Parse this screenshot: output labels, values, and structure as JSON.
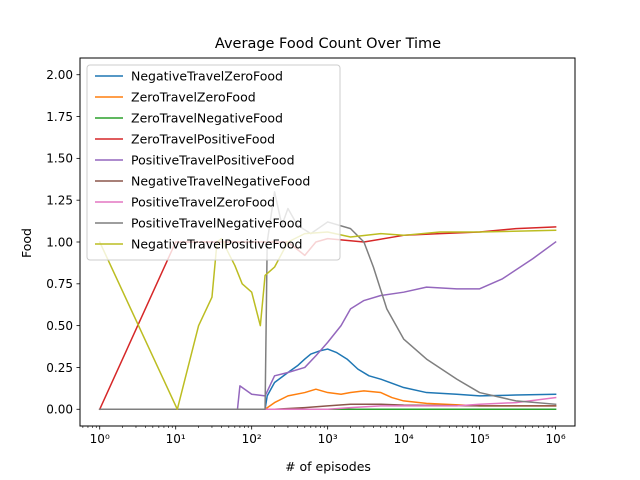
{
  "chart_data": {
    "type": "line",
    "title": "Average Food Count Over Time",
    "xlabel": "# of episodes",
    "ylabel": "Food",
    "xscale": "log",
    "xlim": [
      0.55,
      1800000.0
    ],
    "ylim": [
      -0.1,
      2.1
    ],
    "xticks": [
      {
        "value": 1,
        "label": "10⁰"
      },
      {
        "value": 10,
        "label": "10¹"
      },
      {
        "value": 100,
        "label": "10²"
      },
      {
        "value": 1000,
        "label": "10³"
      },
      {
        "value": 10000,
        "label": "10⁴"
      },
      {
        "value": 100000,
        "label": "10⁵"
      },
      {
        "value": 1000000,
        "label": "10⁶"
      }
    ],
    "yticks": [
      {
        "value": 0.0,
        "label": "0.00"
      },
      {
        "value": 0.25,
        "label": "0.25"
      },
      {
        "value": 0.5,
        "label": "0.50"
      },
      {
        "value": 0.75,
        "label": "0.75"
      },
      {
        "value": 1.0,
        "label": "1.00"
      },
      {
        "value": 1.25,
        "label": "1.25"
      },
      {
        "value": 1.5,
        "label": "1.50"
      },
      {
        "value": 1.75,
        "label": "1.75"
      },
      {
        "value": 2.0,
        "label": "2.00"
      }
    ],
    "grid": false,
    "legend_position": "upper-left",
    "series": [
      {
        "name": "NegativeTravelZeroFood",
        "color": "#1f77b4",
        "points": [
          [
            1,
            0
          ],
          [
            150,
            0
          ],
          [
            160,
            0.08
          ],
          [
            200,
            0.16
          ],
          [
            300,
            0.22
          ],
          [
            400,
            0.26
          ],
          [
            500,
            0.3
          ],
          [
            600,
            0.33
          ],
          [
            800,
            0.35
          ],
          [
            1000,
            0.36
          ],
          [
            1300,
            0.34
          ],
          [
            1800,
            0.3
          ],
          [
            2500,
            0.24
          ],
          [
            3500,
            0.2
          ],
          [
            5000,
            0.18
          ],
          [
            10000,
            0.13
          ],
          [
            20000,
            0.1
          ],
          [
            50000,
            0.09
          ],
          [
            100000,
            0.08
          ],
          [
            300000,
            0.085
          ],
          [
            1000000,
            0.09
          ]
        ]
      },
      {
        "name": "ZeroTravelZeroFood",
        "color": "#ff7f0e",
        "points": [
          [
            1,
            0
          ],
          [
            150,
            0
          ],
          [
            200,
            0.04
          ],
          [
            300,
            0.08
          ],
          [
            500,
            0.1
          ],
          [
            700,
            0.12
          ],
          [
            1000,
            0.1
          ],
          [
            1500,
            0.09
          ],
          [
            2000,
            0.1
          ],
          [
            3000,
            0.11
          ],
          [
            5000,
            0.1
          ],
          [
            7000,
            0.07
          ],
          [
            10000,
            0.05
          ],
          [
            20000,
            0.035
          ],
          [
            100000,
            0.02
          ],
          [
            1000000,
            0.02
          ]
        ]
      },
      {
        "name": "ZeroTravelNegativeFood",
        "color": "#2ca02c",
        "points": [
          [
            1,
            0
          ],
          [
            1000000,
            0
          ]
        ]
      },
      {
        "name": "ZeroTravelPositiveFood",
        "color": "#d62728",
        "points": [
          [
            1,
            0
          ],
          [
            10,
            1.0
          ],
          [
            100,
            1.0
          ],
          [
            300,
            1.0
          ],
          [
            500,
            0.92
          ],
          [
            700,
            1.0
          ],
          [
            1000,
            1.02
          ],
          [
            3000,
            1.0
          ],
          [
            10000,
            1.04
          ],
          [
            30000,
            1.05
          ],
          [
            100000,
            1.06
          ],
          [
            300000,
            1.08
          ],
          [
            1000000,
            1.09
          ]
        ]
      },
      {
        "name": "PositiveTravelPositiveFood",
        "color": "#9467bd",
        "points": [
          [
            1,
            0
          ],
          [
            65,
            0
          ],
          [
            70,
            0.14
          ],
          [
            100,
            0.09
          ],
          [
            150,
            0.08
          ],
          [
            200,
            0.2
          ],
          [
            300,
            0.22
          ],
          [
            500,
            0.25
          ],
          [
            700,
            0.32
          ],
          [
            1000,
            0.4
          ],
          [
            1500,
            0.5
          ],
          [
            2000,
            0.6
          ],
          [
            3000,
            0.65
          ],
          [
            5000,
            0.68
          ],
          [
            10000,
            0.7
          ],
          [
            20000,
            0.73
          ],
          [
            50000,
            0.72
          ],
          [
            100000,
            0.72
          ],
          [
            200000,
            0.78
          ],
          [
            500000,
            0.9
          ],
          [
            1000000,
            1.0
          ]
        ]
      },
      {
        "name": "NegativeTravelNegativeFood",
        "color": "#8c564b",
        "points": [
          [
            1,
            0
          ],
          [
            200,
            0
          ],
          [
            500,
            0.01
          ],
          [
            1000,
            0.02
          ],
          [
            2000,
            0.03
          ],
          [
            5000,
            0.03
          ],
          [
            10000,
            0.025
          ],
          [
            100000,
            0.02
          ],
          [
            1000000,
            0.02
          ]
        ]
      },
      {
        "name": "PositiveTravelZeroFood",
        "color": "#e377c2",
        "points": [
          [
            1,
            0
          ],
          [
            1000,
            0
          ],
          [
            2000,
            0.01
          ],
          [
            5000,
            0.02
          ],
          [
            10000,
            0.02
          ],
          [
            50000,
            0.02
          ],
          [
            100000,
            0.03
          ],
          [
            300000,
            0.04
          ],
          [
            1000000,
            0.07
          ]
        ]
      },
      {
        "name": "PositiveTravelNegativeFood",
        "color": "#7f7f7f",
        "points": [
          [
            1,
            0
          ],
          [
            150,
            0
          ],
          [
            160,
            1.0
          ],
          [
            200,
            1.3
          ],
          [
            250,
            1.1
          ],
          [
            300,
            1.2
          ],
          [
            400,
            1.1
          ],
          [
            600,
            1.05
          ],
          [
            1000,
            1.12
          ],
          [
            2000,
            1.08
          ],
          [
            3000,
            1.0
          ],
          [
            4000,
            0.85
          ],
          [
            6000,
            0.6
          ],
          [
            10000,
            0.42
          ],
          [
            20000,
            0.3
          ],
          [
            50000,
            0.18
          ],
          [
            100000,
            0.1
          ],
          [
            300000,
            0.05
          ],
          [
            1000000,
            0.03
          ]
        ]
      },
      {
        "name": "NegativeTravelPositiveFood",
        "color": "#bcbd22",
        "points": [
          [
            1,
            1.0
          ],
          [
            10.5,
            0
          ],
          [
            20,
            0.5
          ],
          [
            30,
            0.67
          ],
          [
            35,
            1.0
          ],
          [
            40,
            1.02
          ],
          [
            50,
            0.93
          ],
          [
            60,
            0.86
          ],
          [
            75,
            0.75
          ],
          [
            100,
            0.7
          ],
          [
            130,
            0.5
          ],
          [
            150,
            0.8
          ],
          [
            200,
            0.85
          ],
          [
            300,
            1.0
          ],
          [
            500,
            1.05
          ],
          [
            1000,
            1.06
          ],
          [
            2000,
            1.03
          ],
          [
            5000,
            1.05
          ],
          [
            10000,
            1.04
          ],
          [
            30000,
            1.06
          ],
          [
            100000,
            1.06
          ],
          [
            1000000,
            1.07
          ]
        ]
      }
    ]
  }
}
